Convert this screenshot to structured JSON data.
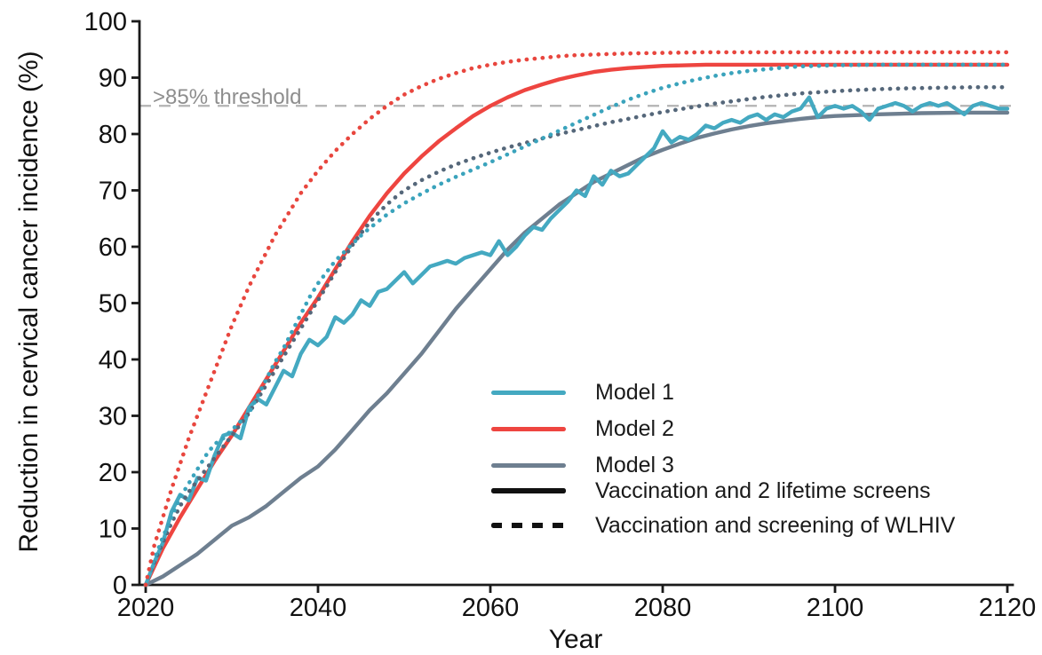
{
  "figure": {
    "background": "#ffffff"
  },
  "colors": {
    "model1": "#44A9C1",
    "model1_dotted": "#3AA3BC",
    "model2": "#EE4540",
    "model2_dotted": "#E8463E",
    "model3": "#6E7F90",
    "model3_dotted": "#55677A",
    "black": "#111111",
    "axis": "#1a1a1a",
    "threshold_line": "#b3b3b3",
    "threshold_text": "#8e8e8e"
  },
  "legend": {
    "items": [
      {
        "label": "Model 1",
        "swatch": "model1",
        "style": "solid"
      },
      {
        "label": "Model 2",
        "swatch": "model2",
        "style": "solid"
      },
      {
        "label": "Model 3",
        "swatch": "model3",
        "style": "solid"
      },
      {
        "label": "Vaccination and 2 lifetime screens",
        "swatch": "black",
        "style": "solid"
      },
      {
        "label": "Vaccination and screening of WLHIV",
        "swatch": "black",
        "style": "dotted"
      }
    ]
  },
  "chart_data": {
    "type": "line",
    "title": "",
    "xlabel": "Year",
    "ylabel": "Reduction in cervical cancer incidence (%)",
    "xlim": [
      2020,
      2120
    ],
    "ylim": [
      0,
      100
    ],
    "x_ticks": [
      2020,
      2040,
      2060,
      2080,
      2100,
      2120
    ],
    "y_ticks": [
      0,
      10,
      20,
      30,
      40,
      50,
      60,
      70,
      80,
      90,
      100
    ],
    "grid": false,
    "legend_position": "inside lower right",
    "threshold": {
      "value": 85,
      "label": ">85% threshold"
    },
    "draw_order": [
      "m3_solid",
      "m2_solid",
      "m1_solid",
      "m3_dotted",
      "m1_dotted",
      "m2_dotted"
    ],
    "series": [
      {
        "id": "m1_solid",
        "name": "Model 1 - Vaccination and 2 lifetime screens",
        "model": "Model 1",
        "scenario": "Vaccination and 2 lifetime screens",
        "style": "solid",
        "color_key": "model1",
        "x": [
          2020,
          2021,
          2022,
          2023,
          2024,
          2025,
          2026,
          2027,
          2028,
          2029,
          2030,
          2031,
          2032,
          2033,
          2034,
          2035,
          2036,
          2037,
          2038,
          2039,
          2040,
          2041,
          2042,
          2043,
          2044,
          2045,
          2046,
          2047,
          2048,
          2049,
          2050,
          2051,
          2052,
          2053,
          2054,
          2055,
          2056,
          2057,
          2058,
          2059,
          2060,
          2061,
          2062,
          2063,
          2064,
          2065,
          2066,
          2067,
          2068,
          2069,
          2070,
          2071,
          2072,
          2073,
          2074,
          2075,
          2076,
          2077,
          2078,
          2079,
          2080,
          2081,
          2082,
          2083,
          2084,
          2085,
          2086,
          2087,
          2088,
          2089,
          2090,
          2091,
          2092,
          2093,
          2094,
          2095,
          2096,
          2097,
          2098,
          2099,
          2100,
          2101,
          2102,
          2103,
          2104,
          2105,
          2106,
          2107,
          2108,
          2109,
          2110,
          2111,
          2112,
          2113,
          2114,
          2115,
          2116,
          2117,
          2118,
          2119,
          2120
        ],
        "y": [
          0,
          4,
          7.5,
          13,
          16,
          15,
          19,
          18.5,
          23,
          26.5,
          27,
          26,
          31.5,
          33,
          32,
          35,
          38,
          37,
          41,
          43.5,
          42.5,
          44,
          47.5,
          46.5,
          48,
          50.5,
          49.5,
          52,
          52.5,
          54,
          55.5,
          53.5,
          55,
          56.5,
          57,
          57.5,
          57,
          58,
          58.5,
          59,
          58.5,
          61,
          58.5,
          60,
          62,
          63.5,
          63,
          65,
          66.5,
          68,
          70,
          69,
          72.5,
          71,
          73.5,
          72.5,
          73,
          74.5,
          76,
          77.5,
          80.5,
          78.5,
          79.5,
          79,
          80,
          81.5,
          81,
          82,
          82.5,
          82,
          83,
          83.5,
          82.5,
          83.5,
          83,
          84,
          84.5,
          86.5,
          83,
          84.5,
          85,
          84.5,
          85,
          84,
          82.5,
          84.5,
          85,
          85.5,
          85,
          84,
          85,
          85.5,
          85,
          85.5,
          84.5,
          83.5,
          85,
          85.5,
          85,
          84.5,
          84.5
        ]
      },
      {
        "id": "m2_solid",
        "name": "Model 2 - Vaccination and 2 lifetime screens",
        "model": "Model 2",
        "scenario": "Vaccination and 2 lifetime screens",
        "style": "solid",
        "color_key": "model2",
        "x": [
          2020,
          2022,
          2024,
          2026,
          2028,
          2030,
          2032,
          2034,
          2036,
          2038,
          2040,
          2042,
          2044,
          2046,
          2048,
          2050,
          2052,
          2054,
          2056,
          2058,
          2060,
          2062,
          2064,
          2066,
          2068,
          2070,
          2072,
          2074,
          2076,
          2078,
          2080,
          2085,
          2090,
          2095,
          2100,
          2105,
          2110,
          2115,
          2120
        ],
        "y": [
          0,
          6.5,
          12,
          17,
          22,
          26.5,
          31.5,
          36.5,
          41.5,
          46.5,
          51,
          56,
          61,
          65.5,
          69.5,
          73,
          76,
          78.7,
          81,
          83.2,
          85,
          86.5,
          87.8,
          88.8,
          89.7,
          90.4,
          91,
          91.4,
          91.7,
          91.9,
          92.1,
          92.3,
          92.3,
          92.3,
          92.3,
          92.3,
          92.3,
          92.3,
          92.3
        ]
      },
      {
        "id": "m3_solid",
        "name": "Model 3 - Vaccination and 2 lifetime screens",
        "model": "Model 3",
        "scenario": "Vaccination and 2 lifetime screens",
        "style": "solid",
        "color_key": "model3",
        "x": [
          2020,
          2022,
          2024,
          2026,
          2028,
          2030,
          2032,
          2034,
          2036,
          2038,
          2040,
          2042,
          2044,
          2046,
          2048,
          2050,
          2052,
          2054,
          2056,
          2058,
          2060,
          2062,
          2064,
          2066,
          2068,
          2070,
          2072,
          2074,
          2076,
          2078,
          2080,
          2082,
          2084,
          2086,
          2088,
          2090,
          2092,
          2094,
          2096,
          2098,
          2100,
          2105,
          2110,
          2115,
          2120
        ],
        "y": [
          0,
          1.5,
          3.5,
          5.5,
          8,
          10.5,
          12,
          14,
          16.5,
          19,
          21,
          24,
          27.5,
          31,
          34,
          37.5,
          41,
          45,
          49,
          52.5,
          56,
          59.5,
          62.5,
          65,
          67.5,
          69.5,
          71.5,
          73,
          74.5,
          76,
          77.2,
          78.3,
          79.3,
          80.1,
          80.8,
          81.4,
          81.9,
          82.3,
          82.7,
          83,
          83.2,
          83.5,
          83.7,
          83.8,
          83.8
        ]
      },
      {
        "id": "m1_dotted",
        "name": "Model 1 - Vaccination and screening of WLHIV",
        "model": "Model 1",
        "scenario": "Vaccination and screening of WLHIV",
        "style": "dotted",
        "color_key": "model1_dotted",
        "x": [
          2020,
          2021,
          2022,
          2023,
          2024,
          2025,
          2026,
          2027,
          2028,
          2029,
          2030,
          2031,
          2032,
          2033,
          2034,
          2035,
          2036,
          2037,
          2038,
          2039,
          2040,
          2041,
          2042,
          2043,
          2044,
          2045,
          2046,
          2047,
          2048,
          2049,
          2050,
          2052,
          2054,
          2056,
          2058,
          2060,
          2062,
          2064,
          2066,
          2068,
          2070,
          2072,
          2074,
          2076,
          2078,
          2080,
          2082,
          2084,
          2086,
          2088,
          2090,
          2092,
          2094,
          2096,
          2098,
          2100,
          2105,
          2110,
          2115,
          2120
        ],
        "y": [
          0,
          4.5,
          8.5,
          12,
          15.5,
          18,
          20.5,
          23,
          25,
          26,
          27.5,
          29,
          30.5,
          33.5,
          36.5,
          39.5,
          42,
          45,
          48,
          51,
          53.5,
          55.5,
          57.5,
          59,
          60.5,
          62,
          63.3,
          64.5,
          65.7,
          66.7,
          67.7,
          69.4,
          71,
          72.4,
          73.7,
          75,
          76.4,
          77.8,
          79.2,
          80.6,
          82,
          83.4,
          84.8,
          86.1,
          87.2,
          88.2,
          89,
          89.7,
          90.3,
          90.8,
          91.2,
          91.5,
          91.8,
          92,
          92.1,
          92.2,
          92.3,
          92.3,
          92.3,
          92.3
        ]
      },
      {
        "id": "m2_dotted",
        "name": "Model 2 - Vaccination and screening of WLHIV",
        "model": "Model 2",
        "scenario": "Vaccination and screening of WLHIV",
        "style": "dotted",
        "color_key": "model2_dotted",
        "x": [
          2020,
          2021,
          2022,
          2023,
          2024,
          2025,
          2026,
          2027,
          2028,
          2029,
          2030,
          2031,
          2032,
          2033,
          2034,
          2035,
          2036,
          2037,
          2038,
          2039,
          2040,
          2042,
          2044,
          2046,
          2048,
          2050,
          2052,
          2054,
          2056,
          2058,
          2060,
          2062,
          2064,
          2066,
          2068,
          2070,
          2072,
          2074,
          2076,
          2080,
          2085,
          2090,
          2095,
          2100,
          2105,
          2110,
          2115,
          2120
        ],
        "y": [
          0,
          7,
          12,
          17,
          21.5,
          26,
          30,
          34,
          38,
          42,
          46,
          49.5,
          53,
          56,
          59,
          62,
          64.5,
          67,
          69.5,
          71.5,
          73.5,
          77,
          80,
          82.7,
          85,
          87,
          88.5,
          89.8,
          90.8,
          91.7,
          92.3,
          92.8,
          93.2,
          93.5,
          93.8,
          94,
          94.1,
          94.2,
          94.3,
          94.4,
          94.5,
          94.5,
          94.5,
          94.5,
          94.5,
          94.5,
          94.5,
          94.5
        ]
      },
      {
        "id": "m3_dotted",
        "name": "Model 3 - Vaccination and screening of WLHIV",
        "model": "Model 3",
        "scenario": "Vaccination and screening of WLHIV",
        "style": "dotted",
        "color_key": "model3_dotted",
        "x": [
          2020,
          2021,
          2022,
          2023,
          2024,
          2025,
          2026,
          2027,
          2028,
          2029,
          2030,
          2031,
          2032,
          2033,
          2034,
          2035,
          2036,
          2037,
          2038,
          2039,
          2040,
          2041,
          2042,
          2043,
          2044,
          2045,
          2046,
          2047,
          2048,
          2049,
          2050,
          2052,
          2054,
          2056,
          2058,
          2060,
          2062,
          2064,
          2066,
          2068,
          2070,
          2072,
          2074,
          2076,
          2078,
          2080,
          2082,
          2084,
          2086,
          2088,
          2090,
          2092,
          2094,
          2096,
          2098,
          2100,
          2104,
          2108,
          2112,
          2116,
          2120
        ],
        "y": [
          0,
          4,
          7.5,
          11,
          14,
          16.5,
          18.5,
          20.5,
          22.5,
          24.5,
          26.5,
          28.5,
          30.5,
          33,
          35.5,
          38,
          40.5,
          43,
          45.5,
          48,
          50.5,
          53,
          55.5,
          58,
          60.3,
          62.4,
          64.3,
          66,
          67.5,
          68.8,
          70,
          71.8,
          73.3,
          74.6,
          75.7,
          76.7,
          77.6,
          78.4,
          79.2,
          80,
          80.7,
          81.4,
          82.1,
          82.7,
          83.3,
          83.9,
          84.4,
          84.9,
          85.4,
          85.8,
          86.2,
          86.6,
          86.9,
          87.2,
          87.4,
          87.6,
          87.9,
          88.1,
          88.2,
          88.3,
          88.3
        ]
      }
    ]
  }
}
